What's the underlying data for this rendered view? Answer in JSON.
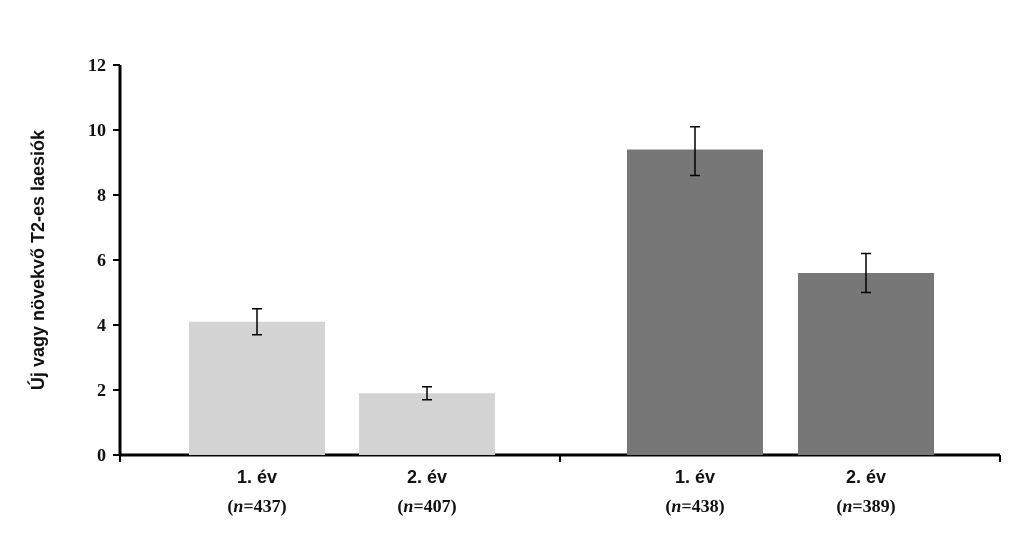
{
  "chart_data": {
    "type": "bar",
    "title": "",
    "xlabel": "",
    "ylabel": "Új vagy növekvő T2-es laesiók",
    "ylim": [
      0,
      12
    ],
    "yticks": [
      0,
      2,
      4,
      6,
      8,
      10,
      12
    ],
    "grid": false,
    "legend": "none",
    "groups": [
      {
        "color": "#d3d3d3",
        "bars": [
          {
            "label": "1. év",
            "n_prefix": "n",
            "n_text": "=437",
            "value": 4.1,
            "err_low": 3.7,
            "err_high": 4.5
          },
          {
            "label": "2. év",
            "n_prefix": "n",
            "n_text": "=407",
            "value": 1.9,
            "err_low": 1.7,
            "err_high": 2.1
          }
        ]
      },
      {
        "color": "#777777",
        "bars": [
          {
            "label": "1. év",
            "n_prefix": "n",
            "n_text": "=438",
            "value": 9.4,
            "err_low": 8.6,
            "err_high": 10.1
          },
          {
            "label": "2. év",
            "n_prefix": "n",
            "n_text": "=389",
            "value": 5.6,
            "err_low": 5.0,
            "err_high": 6.2
          }
        ]
      }
    ]
  }
}
